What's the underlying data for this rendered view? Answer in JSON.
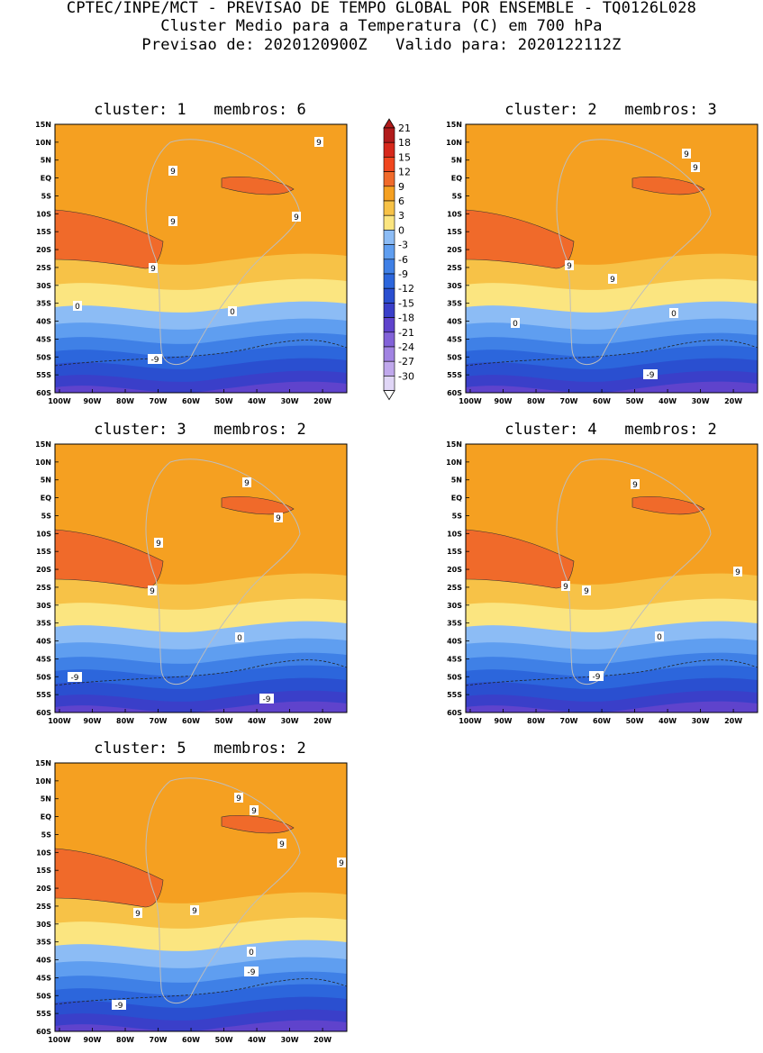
{
  "header": {
    "line1": "CPTEC/INPE/MCT - PREVISAO DE TEMPO GLOBAL POR ENSEMBLE - TQ0126L028",
    "line2": "Cluster Medio para a Temperatura (C) em 700 hPa",
    "line3": "Previsao de: 2020120900Z   Valido para: 2020122112Z"
  },
  "axes": {
    "lat_labels": [
      "15N",
      "10N",
      "5N",
      "EQ",
      "5S",
      "10S",
      "15S",
      "20S",
      "25S",
      "30S",
      "35S",
      "40S",
      "45S",
      "50S",
      "55S",
      "60S"
    ],
    "lon_labels": [
      "100W",
      "90W",
      "80W",
      "70W",
      "60W",
      "50W",
      "40W",
      "30W",
      "20W"
    ]
  },
  "colorbar": {
    "labels": [
      "21",
      "18",
      "15",
      "12",
      "9",
      "6",
      "3",
      "0",
      "-3",
      "-6",
      "-9",
      "-12",
      "-15",
      "-18",
      "-21",
      "-24",
      "-27",
      "-30"
    ],
    "colors": [
      "#b11b1b",
      "#d6281b",
      "#f0461e",
      "#f06a2a",
      "#f5a021",
      "#f7c247",
      "#fbe580",
      "#8cbcf5",
      "#5f9ef0",
      "#3f80e6",
      "#2c66dc",
      "#2a4fd0",
      "#3a3fc9",
      "#5f43cc",
      "#8262d8",
      "#a183e2",
      "#c0a8ec",
      "#e0d6f6"
    ]
  },
  "panels": [
    {
      "title": "cluster: 1   membros: 6",
      "contour_labels": [
        "9",
        "9",
        "9",
        "9",
        "9",
        "0",
        "0",
        "-9"
      ]
    },
    {
      "title": "cluster: 2   membros: 3",
      "contour_labels": [
        "9",
        "9",
        "9",
        "9",
        "0",
        "0",
        "-9"
      ]
    },
    {
      "title": "cluster: 3   membros: 2",
      "contour_labels": [
        "9",
        "9",
        "9",
        "9",
        "0",
        "-9",
        "-9"
      ]
    },
    {
      "title": "cluster: 4   membros: 2",
      "contour_labels": [
        "9",
        "9",
        "9",
        "9",
        "0",
        "-9"
      ]
    },
    {
      "title": "cluster: 5   membros: 2",
      "contour_labels": [
        "9",
        "9",
        "9",
        "9",
        "9",
        "9",
        "0",
        "-9",
        "-9"
      ]
    }
  ]
}
